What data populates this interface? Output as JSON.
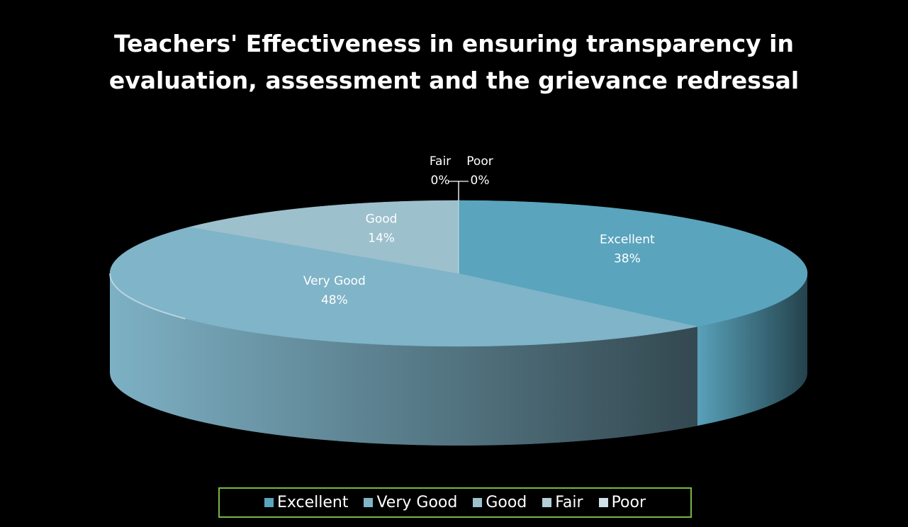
{
  "chart_data": {
    "type": "pie3d",
    "title": [
      "Teachers' Effectiveness in ensuring transparency in",
      "evaluation, assessment and the grievance redressal"
    ],
    "categories": [
      "Excellent",
      "Very Good",
      "Good",
      "Fair",
      "Poor"
    ],
    "values": [
      38,
      48,
      14,
      0,
      0
    ],
    "value_labels": [
      "38%",
      "48%",
      "14%",
      "0%",
      "0%"
    ],
    "colors": [
      "#5aa4bd",
      "#80b4c8",
      "#9dc0cd",
      "#b3cfd8",
      "#cfe0e6"
    ],
    "legend": "bottom"
  }
}
